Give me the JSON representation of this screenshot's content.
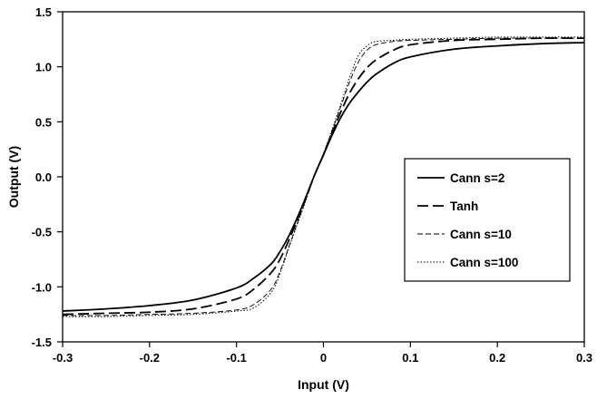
{
  "chart_data": {
    "type": "line",
    "title": "",
    "xlabel": "Input (V)",
    "ylabel": "Output (V)",
    "xlim": [
      -0.3,
      0.3
    ],
    "ylim": [
      -1.5,
      1.5
    ],
    "xticks": [
      "-0.3",
      "-0.2",
      "-0.1",
      "0",
      "0.1",
      "0.2",
      "0.3"
    ],
    "yticks": [
      "1.5",
      "1.0",
      "0.5",
      "0.0",
      "-0.5",
      "-1.0",
      "-1.5"
    ],
    "grid": false,
    "legend_position": "right",
    "x": [
      -0.3,
      -0.25,
      -0.2,
      -0.15,
      -0.1,
      -0.08,
      -0.06,
      -0.05,
      -0.04,
      -0.03,
      -0.02,
      -0.01,
      0,
      0.01,
      0.02,
      0.03,
      0.04,
      0.05,
      0.06,
      0.08,
      0.1,
      0.15,
      0.2,
      0.25,
      0.3
    ],
    "series": [
      {
        "name": "Cann s=2",
        "style": "solid",
        "color": "#000000",
        "values": [
          -1.22,
          -1.2,
          -1.17,
          -1.12,
          -1.01,
          -0.92,
          -0.79,
          -0.68,
          -0.54,
          -0.37,
          -0.18,
          0.02,
          0.2,
          0.38,
          0.54,
          0.67,
          0.77,
          0.86,
          0.93,
          1.03,
          1.09,
          1.16,
          1.19,
          1.21,
          1.22
        ]
      },
      {
        "name": "Tanh",
        "style": "long-dash",
        "color": "#000000",
        "values": [
          -1.25,
          -1.24,
          -1.23,
          -1.2,
          -1.11,
          -1.02,
          -0.87,
          -0.75,
          -0.58,
          -0.39,
          -0.19,
          0.02,
          0.2,
          0.4,
          0.59,
          0.76,
          0.89,
          0.99,
          1.06,
          1.15,
          1.2,
          1.24,
          1.25,
          1.26,
          1.26
        ]
      },
      {
        "name": "Cann s=10",
        "style": "short-dash",
        "color": "#000000",
        "values": [
          -1.26,
          -1.26,
          -1.25,
          -1.24,
          -1.21,
          -1.16,
          -1.02,
          -0.86,
          -0.64,
          -0.42,
          -0.2,
          0.02,
          0.21,
          0.42,
          0.64,
          0.86,
          1.04,
          1.15,
          1.2,
          1.23,
          1.24,
          1.25,
          1.26,
          1.26,
          1.26
        ]
      },
      {
        "name": "Cann s=100",
        "style": "dotted",
        "color": "#000000",
        "values": [
          -1.27,
          -1.27,
          -1.26,
          -1.25,
          -1.22,
          -1.19,
          -1.05,
          -0.88,
          -0.65,
          -0.43,
          -0.21,
          0.02,
          0.21,
          0.43,
          0.66,
          0.9,
          1.1,
          1.19,
          1.23,
          1.24,
          1.25,
          1.26,
          1.27,
          1.27,
          1.27
        ]
      }
    ]
  }
}
